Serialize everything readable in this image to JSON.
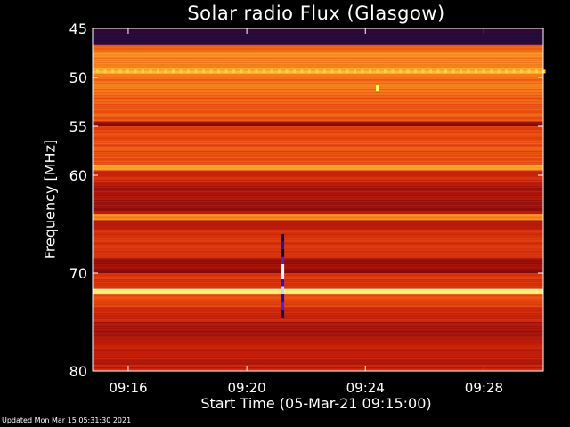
{
  "chart_data": {
    "type": "heatmap",
    "title": "Solar radio Flux (Glasgow)",
    "xlabel": "Start Time (05-Mar-21 09:15:00)",
    "ylabel": "Frequency [MHz]",
    "x_ticks": [
      "09:16",
      "09:20",
      "09:24",
      "09:28"
    ],
    "x_tick_minutes": [
      16,
      20,
      24,
      28
    ],
    "xlim_minutes": [
      14.8,
      30.0
    ],
    "y_ticks": [
      45,
      50,
      55,
      60,
      70,
      80
    ],
    "ylim_mhz": [
      45,
      80
    ],
    "grid": false,
    "colormap": [
      "#1a0a4a",
      "#4a0c10",
      "#8a0c0c",
      "#c8200a",
      "#e84a10",
      "#f88a20",
      "#ffd040",
      "#ffffa0"
    ],
    "bands": [
      {
        "f0": 45.0,
        "f1": 46.7,
        "level": 0.05
      },
      {
        "f0": 46.7,
        "f1": 47.5,
        "level": 0.62
      },
      {
        "f0": 47.5,
        "f1": 49.0,
        "level": 0.7
      },
      {
        "f0": 49.0,
        "f1": 49.6,
        "level": 0.8
      },
      {
        "f0": 49.6,
        "f1": 52.0,
        "level": 0.66
      },
      {
        "f0": 52.0,
        "f1": 54.5,
        "level": 0.6
      },
      {
        "f0": 54.5,
        "f1": 55.0,
        "level": 0.3
      },
      {
        "f0": 55.0,
        "f1": 56.2,
        "level": 0.55
      },
      {
        "f0": 56.2,
        "f1": 59.0,
        "level": 0.58
      },
      {
        "f0": 59.0,
        "f1": 59.5,
        "level": 0.75
      },
      {
        "f0": 59.5,
        "f1": 61.0,
        "level": 0.45
      },
      {
        "f0": 61.0,
        "f1": 64.0,
        "level": 0.35
      },
      {
        "f0": 64.0,
        "f1": 64.6,
        "level": 0.72
      },
      {
        "f0": 64.6,
        "f1": 65.5,
        "level": 0.4
      },
      {
        "f0": 65.5,
        "f1": 68.5,
        "level": 0.5
      },
      {
        "f0": 68.5,
        "f1": 70.0,
        "level": 0.32
      },
      {
        "f0": 70.0,
        "f1": 71.6,
        "level": 0.5
      },
      {
        "f0": 71.6,
        "f1": 72.2,
        "level": 0.95
      },
      {
        "f0": 72.2,
        "f1": 73.5,
        "level": 0.55
      },
      {
        "f0": 73.5,
        "f1": 75.0,
        "level": 0.45
      },
      {
        "f0": 75.0,
        "f1": 76.5,
        "level": 0.35
      },
      {
        "f0": 76.5,
        "f1": 80.0,
        "level": 0.42
      }
    ],
    "spike": {
      "minute": 21.2,
      "f0": 66.0,
      "f1": 74.5
    },
    "spot": {
      "minute": 24.4,
      "freq": 51.1
    }
  },
  "footer": "Updated Mon Mar 15 05:31:30 2021"
}
